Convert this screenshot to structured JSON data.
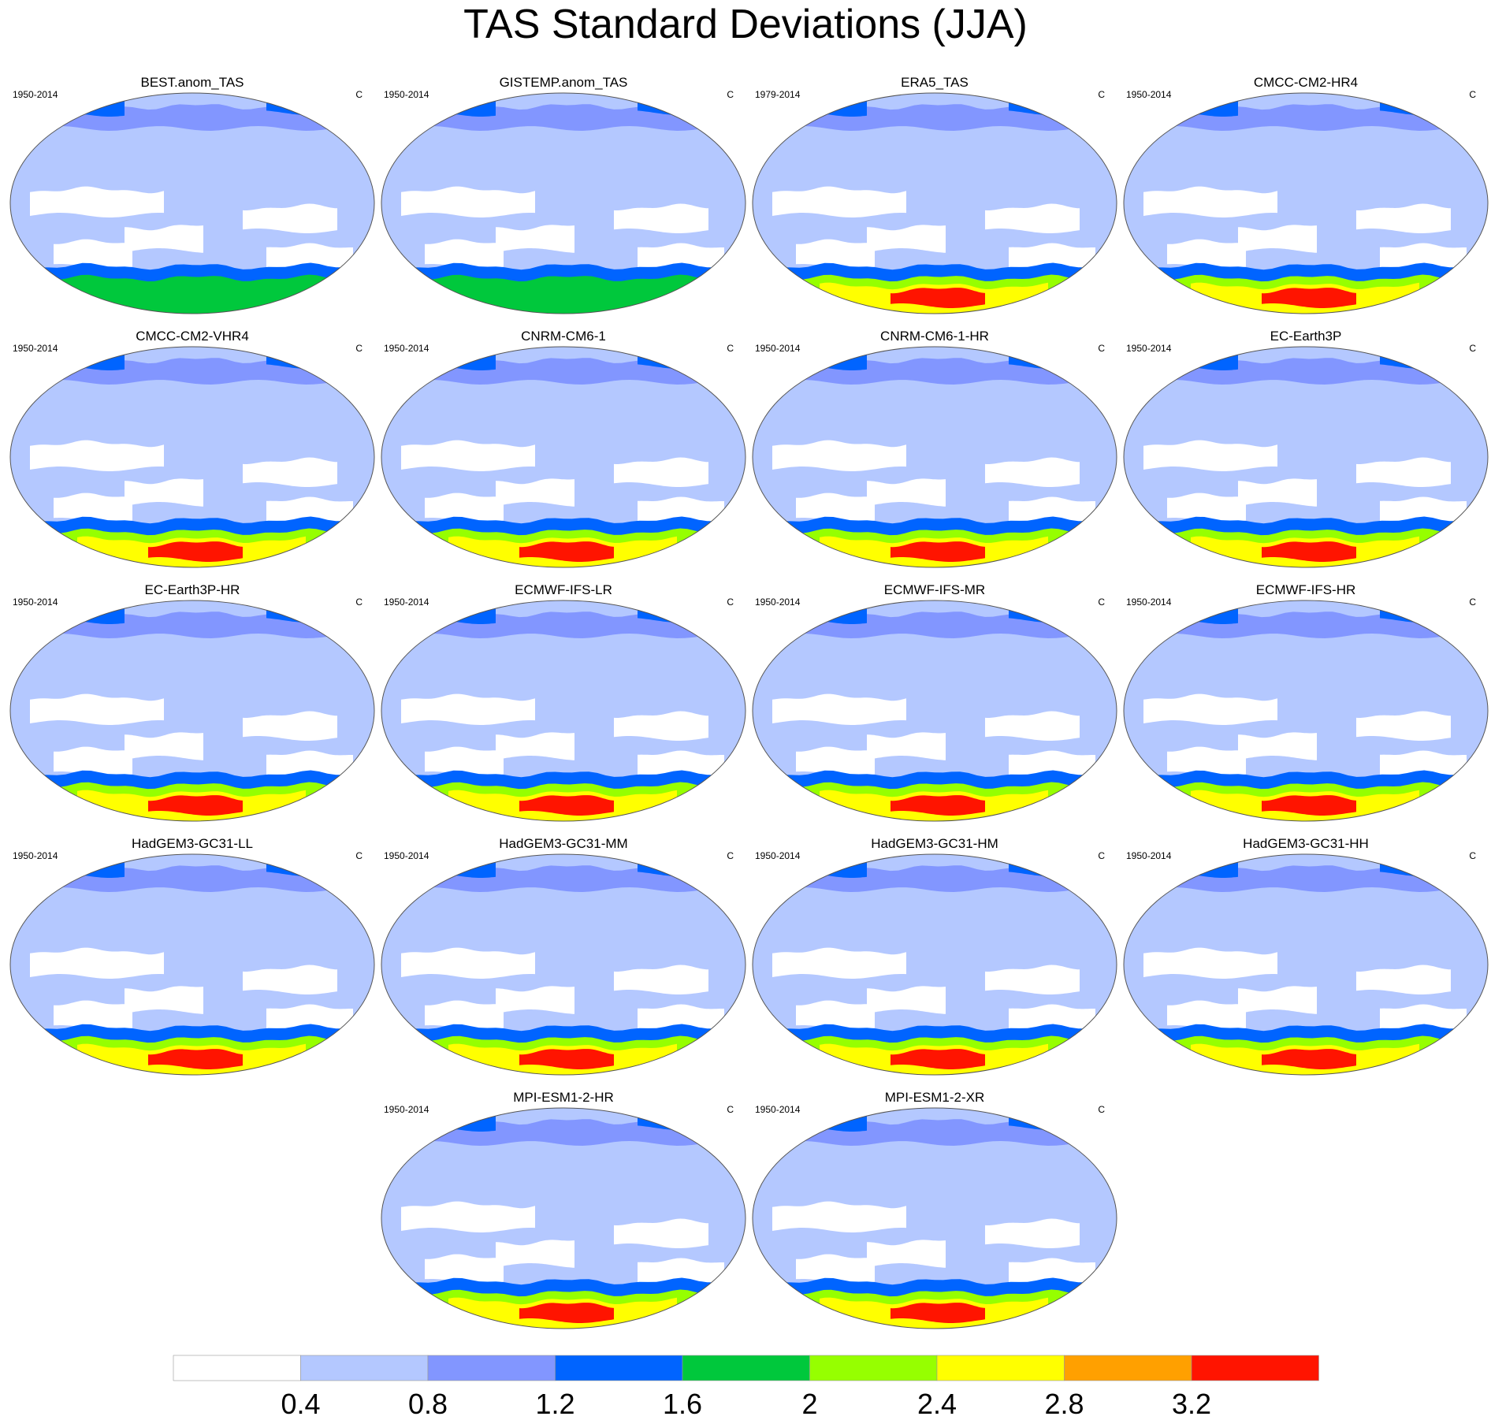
{
  "title": "TAS Standard Deviations (JJA)",
  "panels": [
    {
      "name": "BEST.anom_TAS",
      "period": "1950-2014",
      "units": "C",
      "southern_max": 1.9
    },
    {
      "name": "GISTEMP.anom_TAS",
      "period": "1950-2014",
      "units": "C",
      "southern_max": 1.9
    },
    {
      "name": "ERA5_TAS",
      "period": "1979-2014",
      "units": "C",
      "southern_max": 3.3
    },
    {
      "name": "CMCC-CM2-HR4",
      "period": "1950-2014",
      "units": "C",
      "southern_max": 3.3
    },
    {
      "name": "CMCC-CM2-VHR4",
      "period": "1950-2014",
      "units": "C",
      "southern_max": 3.4
    },
    {
      "name": "CNRM-CM6-1",
      "period": "1950-2014",
      "units": "C",
      "southern_max": 3.4
    },
    {
      "name": "CNRM-CM6-1-HR",
      "period": "1950-2014",
      "units": "C",
      "southern_max": 3.3
    },
    {
      "name": "EC-Earth3P",
      "period": "1950-2014",
      "units": "C",
      "southern_max": 3.3
    },
    {
      "name": "EC-Earth3P-HR",
      "period": "1950-2014",
      "units": "C",
      "southern_max": 3.3
    },
    {
      "name": "ECMWF-IFS-LR",
      "period": "1950-2014",
      "units": "C",
      "southern_max": 3.4
    },
    {
      "name": "ECMWF-IFS-MR",
      "period": "1950-2014",
      "units": "C",
      "southern_max": 3.3
    },
    {
      "name": "ECMWF-IFS-HR",
      "period": "1950-2014",
      "units": "C",
      "southern_max": 3.3
    },
    {
      "name": "HadGEM3-GC31-LL",
      "period": "1950-2014",
      "units": "C",
      "southern_max": 3.4
    },
    {
      "name": "HadGEM3-GC31-MM",
      "period": "1950-2014",
      "units": "C",
      "southern_max": 3.4
    },
    {
      "name": "HadGEM3-GC31-HM",
      "period": "1950-2014",
      "units": "C",
      "southern_max": 3.4
    },
    {
      "name": "HadGEM3-GC31-HH",
      "period": "1950-2014",
      "units": "C",
      "southern_max": 3.4
    },
    {
      "name": "MPI-ESM1-2-HR",
      "period": "1950-2014",
      "units": "C",
      "southern_max": 3.3
    },
    {
      "name": "MPI-ESM1-2-XR",
      "period": "1950-2014",
      "units": "C",
      "southern_max": 3.3
    }
  ],
  "colorbar": {
    "labels": [
      "0.4",
      "0.8",
      "1.2",
      "1.6",
      "2",
      "2.4",
      "2.8",
      "3.2"
    ],
    "colors": [
      "#ffffff",
      "#b4c8ff",
      "#8296ff",
      "#0064ff",
      "#00c83c",
      "#96ff00",
      "#ffff00",
      "#ffa000",
      "#ff1400"
    ]
  }
}
